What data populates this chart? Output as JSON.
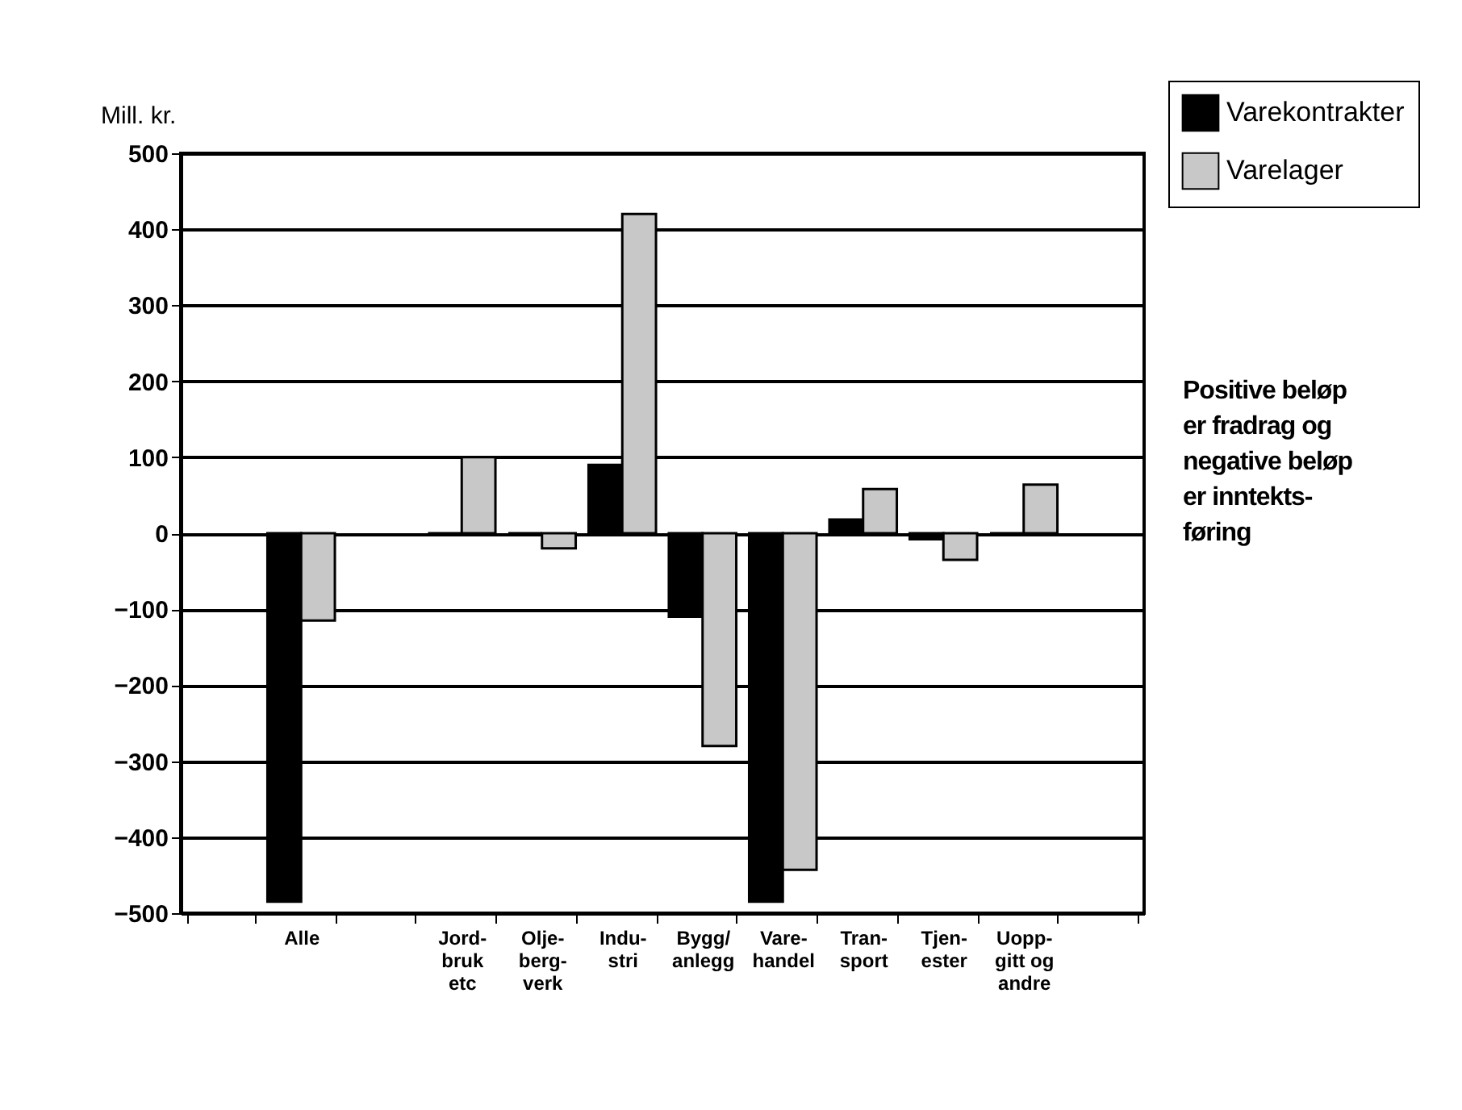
{
  "chart_data": {
    "type": "bar",
    "ylabel": "Mill. kr.",
    "categories": [
      null,
      "Alle",
      null,
      "Jord-\nbruk\netc",
      "Olje-\nberg-\nverk",
      "Indu-\nstri",
      "Bygg/\nanlegg",
      "Vare-\nhandel",
      "Tran-\nsport",
      "Tjen-\nester",
      "Uopp-\ngitt og\nandre",
      null
    ],
    "series": [
      {
        "name": "Varekontrakter",
        "color": "#000000",
        "values": [
          null,
          -485,
          null,
          0,
          0,
          90,
          -110,
          -485,
          18,
          -8,
          0,
          null
        ]
      },
      {
        "name": "Varelager",
        "color": "#c8c8c8",
        "values": [
          null,
          -115,
          null,
          100,
          -20,
          420,
          -280,
          -443,
          58,
          -35,
          64,
          null
        ]
      }
    ],
    "ylim": [
      -500,
      500
    ],
    "yticks": [
      -500,
      -400,
      -300,
      -200,
      -100,
      0,
      100,
      200,
      300,
      400,
      500
    ],
    "grid": "y",
    "legend": "top right",
    "annotations": [
      "Positive beløp\ner fradrag og\nnegative beløp\ner inntekts-\nføring"
    ]
  }
}
